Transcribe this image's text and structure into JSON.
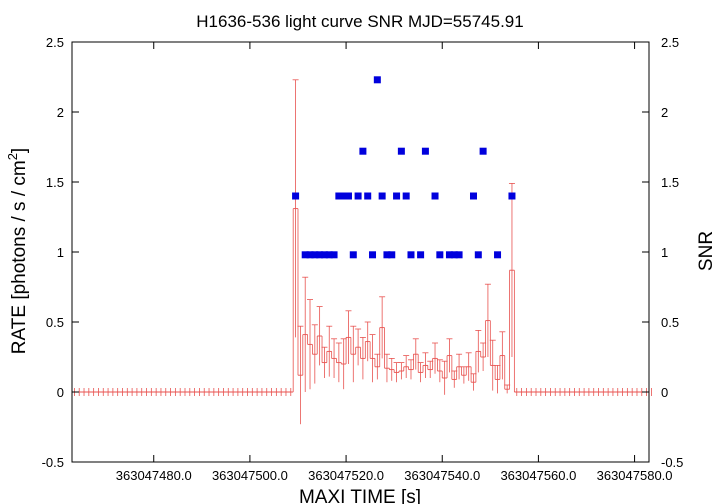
{
  "chart_data": {
    "type": "scatter",
    "title": "H1636-536 light curve  SNR MJD=55745.91",
    "xlabel": "MAXI TIME [s]",
    "ylabel": "RATE [photons / s / cm",
    "ylabel_sup": "2",
    "ylabel_end": "]",
    "y2label": "SNR",
    "xlim": [
      363047463.0,
      363047583.0
    ],
    "ylim": [
      -0.5,
      2.5
    ],
    "y2lim": [
      -0.5,
      2.5
    ],
    "x_ticks": [
      363047480.0,
      363047500.0,
      363047520.0,
      363047540.0,
      363047560.0,
      363047580.0
    ],
    "x_tick_labels": [
      "363047480.0",
      "363047500.0",
      "363047520.0",
      "363047540.0",
      "363047560.0",
      "363047580.0"
    ],
    "y_ticks": [
      -0.5,
      0,
      0.5,
      1,
      1.5,
      2,
      2.5
    ],
    "y_tick_labels": [
      "-0.5",
      "0",
      "0.5",
      "1",
      "1.5",
      "2",
      "2.5"
    ],
    "grid": false,
    "colors": {
      "rate": "#e8524f",
      "snr": "#0000dd"
    },
    "rate_series": {
      "name": "RATE",
      "x_start": 363047463.0,
      "x_step": 1.0,
      "values": [
        0,
        0,
        0,
        0,
        0,
        0,
        0,
        0,
        0,
        0,
        0,
        0,
        0,
        0,
        0,
        0,
        0,
        0,
        0,
        0,
        0,
        0,
        0,
        0,
        0,
        0,
        0,
        0,
        0,
        0,
        0,
        0,
        0,
        0,
        0,
        0,
        0,
        0,
        0,
        0,
        0,
        0,
        0,
        0,
        0,
        0,
        0,
        0,
        0,
        0,
        0,
        0,
        0,
        0,
        0,
        0,
        0,
        0,
        0,
        0,
        0,
        0,
        0,
        0,
        0,
        0,
        0,
        0,
        0,
        0,
        0,
        0,
        0,
        0,
        0,
        0,
        0,
        0,
        0,
        0,
        0,
        0,
        0,
        0,
        0,
        0,
        0,
        0,
        0,
        0,
        0,
        0,
        0,
        0,
        0,
        0,
        0,
        0,
        0,
        0,
        0,
        0,
        0,
        0,
        0,
        0,
        0,
        0,
        0,
        0,
        0,
        0,
        0,
        0,
        0,
        0,
        0,
        0,
        0,
        0,
        0
      ],
      "errors": [
        0.005,
        0.005,
        0.005,
        0.005,
        0.005,
        0.005,
        0.005,
        0.005,
        0.005,
        0.005,
        0.005,
        0.005,
        0.005,
        0.005,
        0.005,
        0.005,
        0.005,
        0.005,
        0.005,
        0.005,
        0.005,
        0.005,
        0.005,
        0.005,
        0.005,
        0.005,
        0.005,
        0.005,
        0.005,
        0.005,
        0.005,
        0.005,
        0.005,
        0.005,
        0.005,
        0.005,
        0.005,
        0.005,
        0.005,
        0.005,
        0.005,
        0.005,
        0.005,
        0.005,
        0.005,
        0.005,
        0.005,
        0.005,
        0.005,
        0.005,
        0.005,
        0.005,
        0.005,
        0.005,
        0.005,
        0.005,
        0.005,
        0.005,
        0.005,
        0.005,
        0.005,
        0.005,
        0.005,
        0.005,
        0.005,
        0.005,
        0.005,
        0.005,
        0.005,
        0.005,
        0.005,
        0.005,
        0.005,
        0.005,
        0.005,
        0.005,
        0.005,
        0.005,
        0.005,
        0.005,
        0.005,
        0.005,
        0.005,
        0.005,
        0.005,
        0.005,
        0.005,
        0.005,
        0.005,
        0.005,
        0.005,
        0.005,
        0.005,
        0.005,
        0.005,
        0.005,
        0.005,
        0.005,
        0.005,
        0.005,
        0.005,
        0.005,
        0.005,
        0.005,
        0.005,
        0.005,
        0.005,
        0.005,
        0.005,
        0.005,
        0.005,
        0.005,
        0.005,
        0.005,
        0.005,
        0.005,
        0.005,
        0.005,
        0.005,
        0.005,
        0.005
      ]
    },
    "rate_active": {
      "x": [
        363047509.5,
        363047510.5,
        363047511.5,
        363047512.5,
        363047513.5,
        363047514.5,
        363047515.5,
        363047516.5,
        363047517.5,
        363047518.5,
        363047519.5,
        363047520.5,
        363047521.5,
        363047522.5,
        363047523.5,
        363047524.5,
        363047525.5,
        363047526.5,
        363047527.5,
        363047528.5,
        363047529.5,
        363047530.5,
        363047531.5,
        363047532.5,
        363047533.5,
        363047534.5,
        363047535.5,
        363047536.5,
        363047537.5,
        363047538.5,
        363047539.5,
        363047540.5,
        363047541.5,
        363047542.5,
        363047543.5,
        363047544.5,
        363047545.5,
        363047546.5,
        363047547.5,
        363047548.5,
        363047549.5,
        363047550.5,
        363047551.5,
        363047552.5,
        363047553.5,
        363047554.5
      ],
      "values": [
        1.31,
        0.12,
        0.41,
        0.34,
        0.27,
        0.4,
        0.21,
        0.29,
        0.24,
        0.21,
        0.2,
        0.39,
        0.27,
        0.32,
        0.24,
        0.36,
        0.24,
        0.18,
        0.46,
        0.17,
        0.16,
        0.14,
        0.15,
        0.18,
        0.16,
        0.27,
        0.14,
        0.19,
        0.16,
        0.24,
        0.15,
        0.1,
        0.26,
        0.09,
        0.18,
        0.12,
        0.18,
        0.07,
        0.29,
        0.25,
        0.51,
        0.19,
        0.09,
        0.26,
        0.02,
        0.87
      ],
      "errors": [
        0.92,
        0.35,
        0.41,
        0.32,
        0.21,
        0.21,
        0.11,
        0.18,
        0.14,
        0.14,
        0.18,
        0.19,
        0.2,
        0.13,
        0.15,
        0.14,
        0.17,
        0.09,
        0.22,
        0.1,
        0.08,
        0.07,
        0.06,
        0.08,
        0.07,
        0.11,
        0.07,
        0.09,
        0.06,
        0.11,
        0.08,
        0.12,
        0.12,
        0.06,
        0.09,
        0.06,
        0.1,
        0.06,
        0.15,
        0.1,
        0.26,
        0.18,
        0.1,
        0.17,
        0.03,
        0.62
      ]
    },
    "snr_series": {
      "name": "SNR",
      "x": [
        363047509.5,
        363047511.5,
        363047512.5,
        363047513.5,
        363047514.5,
        363047515.5,
        363047516.5,
        363047517.5,
        363047518.5,
        363047519.5,
        363047520.5,
        363047521.5,
        363047522.5,
        363047523.5,
        363047524.5,
        363047525.5,
        363047526.5,
        363047527.5,
        363047528.5,
        363047529.5,
        363047530.5,
        363047531.5,
        363047532.5,
        363047533.5,
        363047535.5,
        363047536.5,
        363047538.5,
        363047539.5,
        363047541.5,
        363047542.5,
        363047543.5,
        363047546.5,
        363047547.5,
        363047548.5,
        363047551.5,
        363047554.5
      ],
      "values": [
        1.4,
        0.98,
        0.98,
        0.98,
        0.98,
        0.98,
        0.98,
        0.98,
        1.4,
        1.4,
        1.4,
        0.98,
        1.4,
        1.72,
        1.4,
        0.98,
        2.23,
        1.4,
        0.98,
        0.98,
        1.4,
        1.72,
        1.4,
        0.98,
        0.98,
        1.72,
        1.4,
        0.98,
        0.98,
        0.98,
        0.98,
        1.4,
        0.98,
        1.72,
        0.98,
        1.4
      ]
    }
  }
}
